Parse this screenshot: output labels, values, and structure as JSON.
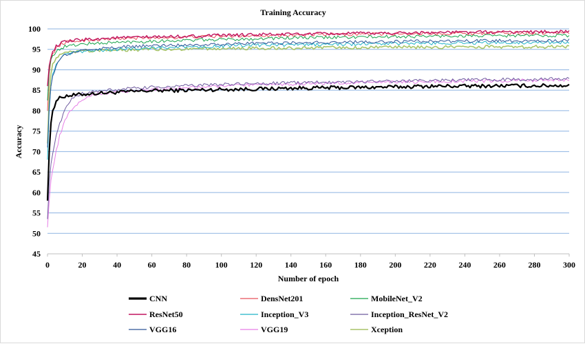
{
  "chart_data": {
    "type": "line",
    "title": "Training Accuracy",
    "xlabel": "Number of epoch",
    "ylabel": "Accuracy",
    "xlim": [
      0,
      300
    ],
    "ylim": [
      45,
      100
    ],
    "x_ticks": [
      0,
      20,
      40,
      60,
      80,
      100,
      120,
      140,
      160,
      180,
      200,
      220,
      240,
      260,
      280,
      300
    ],
    "y_ticks": [
      45,
      50,
      55,
      60,
      65,
      70,
      75,
      80,
      85,
      90,
      95,
      100
    ],
    "grid": "horizontal",
    "legend_position": "bottom",
    "series": [
      {
        "name": "CNN",
        "color": "#000000",
        "width": 2.2,
        "points": [
          [
            0,
            58
          ],
          [
            1,
            70
          ],
          [
            2,
            77
          ],
          [
            3,
            80
          ],
          [
            5,
            82.5
          ],
          [
            8,
            83.3
          ],
          [
            10,
            83.6
          ],
          [
            15,
            83.8
          ],
          [
            20,
            84
          ],
          [
            30,
            84.3
          ],
          [
            40,
            84.5
          ],
          [
            60,
            84.9
          ],
          [
            80,
            85
          ],
          [
            100,
            85.2
          ],
          [
            120,
            85.3
          ],
          [
            140,
            85.5
          ],
          [
            160,
            85.6
          ],
          [
            180,
            85.7
          ],
          [
            200,
            85.8
          ],
          [
            220,
            86
          ],
          [
            240,
            86
          ],
          [
            260,
            86.1
          ],
          [
            280,
            86.1
          ],
          [
            300,
            86.2
          ]
        ]
      },
      {
        "name": "DensNet201",
        "color": "#e8505b",
        "width": 1,
        "points": [
          [
            0,
            80
          ],
          [
            1,
            89
          ],
          [
            2,
            92.5
          ],
          [
            3,
            94
          ],
          [
            5,
            95.3
          ],
          [
            8,
            96.3
          ],
          [
            10,
            96.7
          ],
          [
            20,
            97.2
          ],
          [
            40,
            97.6
          ],
          [
            60,
            97.8
          ],
          [
            80,
            98
          ],
          [
            100,
            98.2
          ],
          [
            120,
            98.4
          ],
          [
            140,
            98.5
          ],
          [
            160,
            98.6
          ],
          [
            180,
            98.7
          ],
          [
            200,
            98.8
          ],
          [
            220,
            98.9
          ],
          [
            240,
            98.9
          ],
          [
            260,
            99
          ],
          [
            280,
            99
          ],
          [
            300,
            99.1
          ]
        ]
      },
      {
        "name": "MobileNet_V2",
        "color": "#17a34a",
        "width": 1,
        "points": [
          [
            0,
            82.5
          ],
          [
            1,
            90
          ],
          [
            2,
            92.5
          ],
          [
            3,
            93.5
          ],
          [
            5,
            94.5
          ],
          [
            8,
            95.3
          ],
          [
            10,
            95.7
          ],
          [
            20,
            96.3
          ],
          [
            40,
            96.7
          ],
          [
            60,
            97
          ],
          [
            80,
            97.2
          ],
          [
            100,
            97.4
          ],
          [
            120,
            97.6
          ],
          [
            140,
            97.8
          ],
          [
            160,
            97.9
          ],
          [
            180,
            98
          ],
          [
            200,
            98.1
          ],
          [
            220,
            98.2
          ],
          [
            240,
            98.3
          ],
          [
            260,
            98.3
          ],
          [
            280,
            98.4
          ],
          [
            300,
            98.4
          ]
        ]
      },
      {
        "name": "ResNet50",
        "color": "#c0145e",
        "width": 1.4,
        "points": [
          [
            0,
            86
          ],
          [
            1,
            91
          ],
          [
            2,
            93
          ],
          [
            3,
            94.5
          ],
          [
            5,
            95.8
          ],
          [
            8,
            96.5
          ],
          [
            10,
            96.8
          ],
          [
            20,
            97.4
          ],
          [
            40,
            97.8
          ],
          [
            60,
            98
          ],
          [
            80,
            98.2
          ],
          [
            100,
            98.4
          ],
          [
            120,
            98.6
          ],
          [
            140,
            98.7
          ],
          [
            160,
            98.8
          ],
          [
            180,
            98.9
          ],
          [
            200,
            99
          ],
          [
            220,
            99.1
          ],
          [
            240,
            99.2
          ],
          [
            260,
            99.2
          ],
          [
            280,
            99.3
          ],
          [
            300,
            99.3
          ]
        ]
      },
      {
        "name": "Inception_V3",
        "color": "#1fb2c8",
        "width": 1,
        "points": [
          [
            0,
            68
          ],
          [
            1,
            80
          ],
          [
            2,
            86
          ],
          [
            3,
            89
          ],
          [
            5,
            91.5
          ],
          [
            8,
            93
          ],
          [
            10,
            93.6
          ],
          [
            20,
            94.5
          ],
          [
            40,
            95
          ],
          [
            60,
            95.4
          ],
          [
            80,
            95.6
          ],
          [
            100,
            95.8
          ],
          [
            120,
            96
          ],
          [
            140,
            96.1
          ],
          [
            160,
            96.2
          ],
          [
            180,
            96.3
          ],
          [
            200,
            96.4
          ],
          [
            220,
            96.5
          ],
          [
            240,
            96.6
          ],
          [
            260,
            96.6
          ],
          [
            280,
            96.7
          ],
          [
            300,
            96.7
          ]
        ]
      },
      {
        "name": "Inception_ResNet_V2",
        "color": "#6e5a9e",
        "width": 1,
        "points": [
          [
            0,
            53.5
          ],
          [
            1,
            62
          ],
          [
            2,
            67
          ],
          [
            4,
            72
          ],
          [
            7,
            77
          ],
          [
            10,
            80
          ],
          [
            14,
            83
          ],
          [
            20,
            84.3
          ],
          [
            30,
            84.8
          ],
          [
            40,
            85.2
          ],
          [
            60,
            85.7
          ],
          [
            80,
            86.1
          ],
          [
            100,
            86.4
          ],
          [
            120,
            86.6
          ],
          [
            140,
            86.8
          ],
          [
            160,
            87
          ],
          [
            180,
            87.1
          ],
          [
            200,
            87.2
          ],
          [
            220,
            87.4
          ],
          [
            240,
            87.5
          ],
          [
            260,
            87.6
          ],
          [
            280,
            87.7
          ],
          [
            300,
            87.8
          ]
        ]
      },
      {
        "name": "VGG16",
        "color": "#2e5597",
        "width": 1,
        "points": [
          [
            0,
            71
          ],
          [
            1,
            81
          ],
          [
            2,
            86
          ],
          [
            3,
            88.5
          ],
          [
            5,
            91
          ],
          [
            8,
            93
          ],
          [
            10,
            93.6
          ],
          [
            20,
            94.8
          ],
          [
            40,
            95.5
          ],
          [
            60,
            95.9
          ],
          [
            80,
            96.1
          ],
          [
            100,
            96.3
          ],
          [
            120,
            96.5
          ],
          [
            140,
            96.6
          ],
          [
            160,
            96.7
          ],
          [
            180,
            96.8
          ],
          [
            200,
            96.9
          ],
          [
            220,
            97
          ],
          [
            240,
            97
          ],
          [
            260,
            97.1
          ],
          [
            280,
            97.1
          ],
          [
            300,
            97.2
          ]
        ]
      },
      {
        "name": "VGG19",
        "color": "#e67ee6",
        "width": 1,
        "points": [
          [
            0,
            51.5
          ],
          [
            1,
            58
          ],
          [
            2,
            63
          ],
          [
            4,
            68
          ],
          [
            7,
            74
          ],
          [
            10,
            77.5
          ],
          [
            14,
            80.5
          ],
          [
            20,
            82.8
          ],
          [
            25,
            83.7
          ],
          [
            30,
            84.2
          ],
          [
            40,
            84.6
          ],
          [
            60,
            85.2
          ],
          [
            80,
            85.6
          ],
          [
            100,
            86
          ],
          [
            120,
            86.3
          ],
          [
            140,
            86.5
          ],
          [
            160,
            86.7
          ],
          [
            180,
            86.9
          ],
          [
            200,
            87
          ],
          [
            220,
            87.1
          ],
          [
            240,
            87.2
          ],
          [
            260,
            87.3
          ],
          [
            280,
            87.4
          ],
          [
            300,
            87.5
          ]
        ]
      },
      {
        "name": "Xception",
        "color": "#a8c468",
        "width": 1.6,
        "points": [
          [
            0,
            72
          ],
          [
            1,
            84
          ],
          [
            2,
            89
          ],
          [
            3,
            91.5
          ],
          [
            5,
            93
          ],
          [
            8,
            93.8
          ],
          [
            10,
            94.1
          ],
          [
            20,
            94.5
          ],
          [
            40,
            94.8
          ],
          [
            60,
            95
          ],
          [
            80,
            95.1
          ],
          [
            100,
            95.2
          ],
          [
            120,
            95.3
          ],
          [
            140,
            95.3
          ],
          [
            160,
            95.4
          ],
          [
            180,
            95.4
          ],
          [
            200,
            95.5
          ],
          [
            220,
            95.5
          ],
          [
            240,
            95.6
          ],
          [
            260,
            95.6
          ],
          [
            280,
            95.6
          ],
          [
            300,
            95.7
          ]
        ]
      }
    ]
  }
}
